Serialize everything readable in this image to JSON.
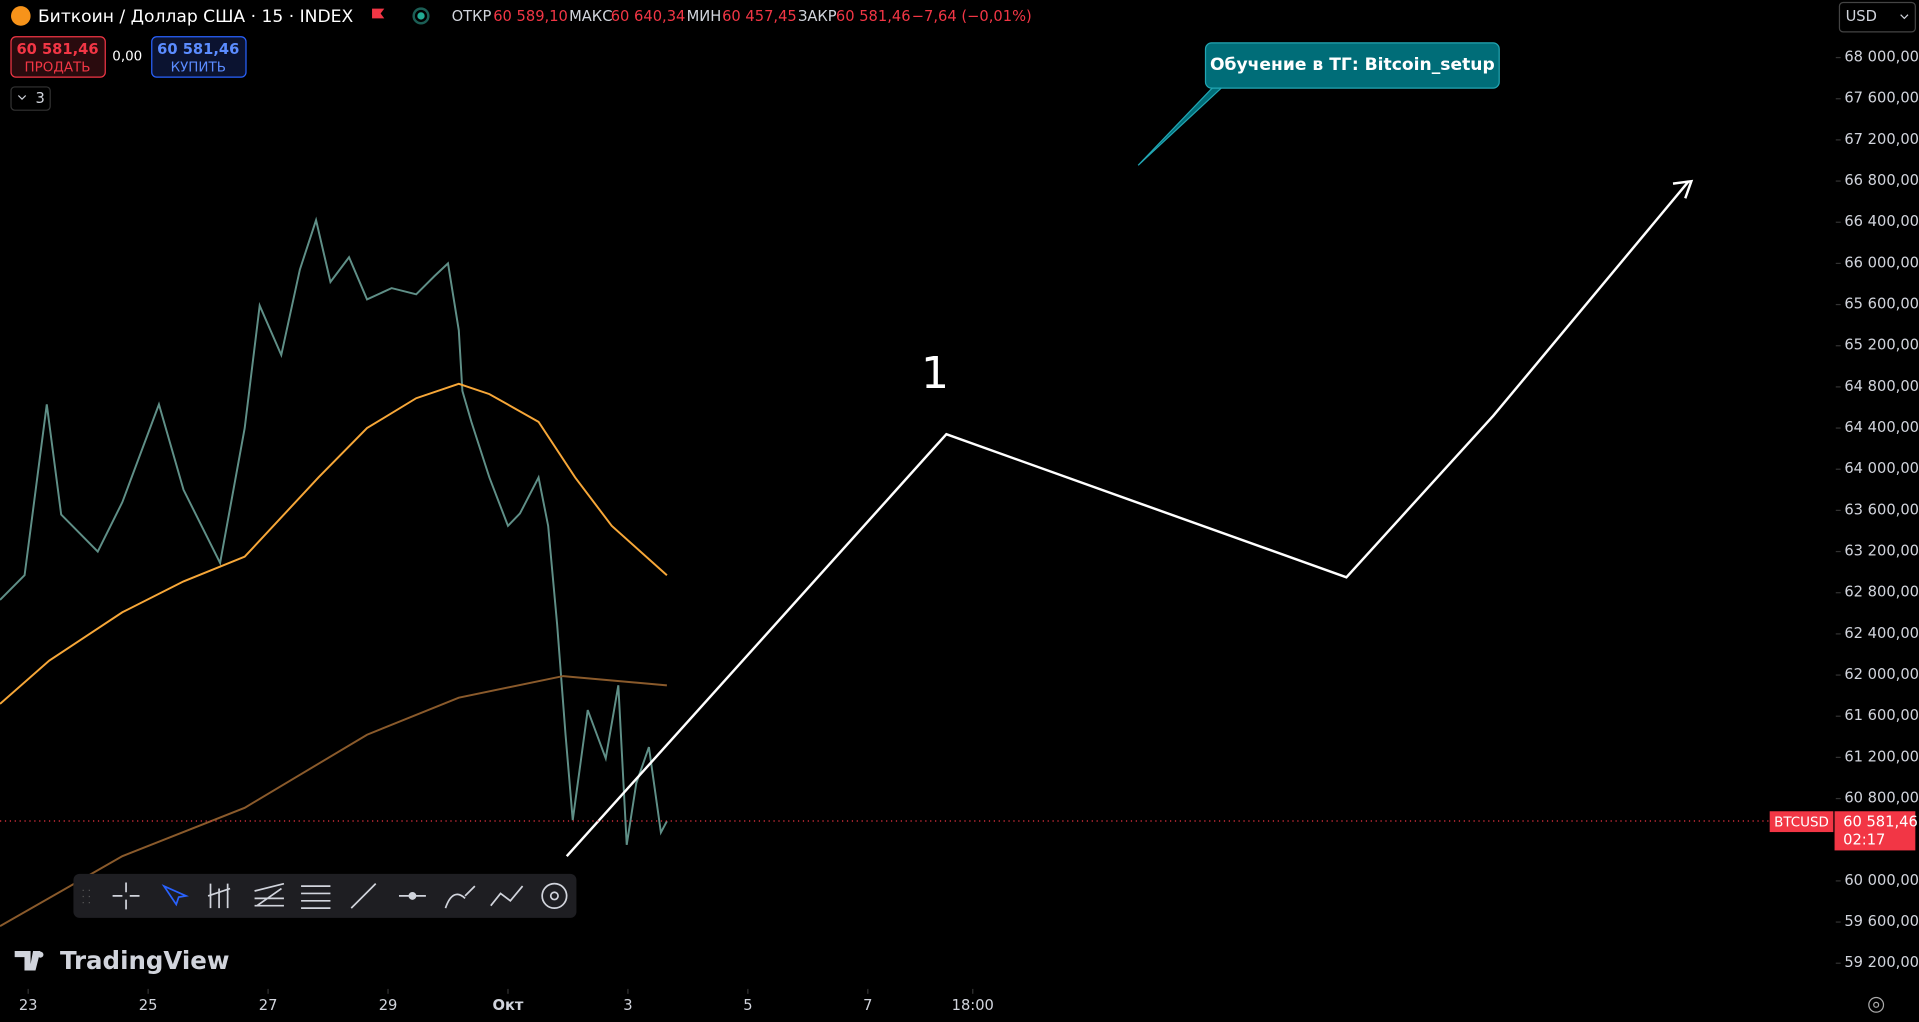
{
  "header": {
    "title": "Биткоин / Доллар США · 15 · INDEX",
    "open_label": "ОТКР",
    "open": "60 589,10",
    "high_label": "МАКС",
    "high": "60 640,34",
    "low_label": "МИН",
    "low": "60 457,45",
    "close_label": "ЗАКР",
    "close": "60 581,46",
    "change": "−7,64 (−0,01%)",
    "sell_price": "60 581,46",
    "sell_label": "ПРОДАТЬ",
    "spread": "0,00",
    "buy_price": "60 581,46",
    "buy_label": "КУПИТЬ",
    "indicators_count": "3",
    "currency": "USD",
    "logo": "TradingView"
  },
  "chart_data": {
    "type": "line",
    "annotations": {
      "callout": "Обучение в ТГ: Bitcoin_setup",
      "wave_label": "1"
    },
    "xlim": [
      -0.47,
      30.14
    ],
    "xticks": [
      {
        "value": 0,
        "label": "23"
      },
      {
        "value": 2,
        "label": "25"
      },
      {
        "value": 4,
        "label": "27"
      },
      {
        "value": 6,
        "label": "29"
      },
      {
        "value": 8,
        "label": "Окт"
      },
      {
        "value": 10,
        "label": "3"
      },
      {
        "value": 12,
        "label": "5"
      },
      {
        "value": 14,
        "label": "7"
      },
      {
        "value": 15.75,
        "label": "18:00"
      }
    ],
    "ylim": [
      58986,
      68559
    ],
    "yticks": [
      {
        "value": 68000,
        "label": "68 000,00"
      },
      {
        "value": 67600,
        "label": "67 600,00"
      },
      {
        "value": 67200,
        "label": "67 200,00"
      },
      {
        "value": 66800,
        "label": "66 800,00"
      },
      {
        "value": 66400,
        "label": "66 400,00"
      },
      {
        "value": 66000,
        "label": "66 000,00"
      },
      {
        "value": 65600,
        "label": "65 600,00"
      },
      {
        "value": 65200,
        "label": "65 200,00"
      },
      {
        "value": 64800,
        "label": "64 800,00"
      },
      {
        "value": 64400,
        "label": "64 400,00"
      },
      {
        "value": 64000,
        "label": "64 000,00"
      },
      {
        "value": 63600,
        "label": "63 600,00"
      },
      {
        "value": 63200,
        "label": "63 200,00"
      },
      {
        "value": 62800,
        "label": "62 800,00"
      },
      {
        "value": 62400,
        "label": "62 400,00"
      },
      {
        "value": 62000,
        "label": "62 000,00"
      },
      {
        "value": 61600,
        "label": "61 600,00"
      },
      {
        "value": 61200,
        "label": "61 200,00"
      },
      {
        "value": 60800,
        "label": "60 800,00"
      },
      {
        "value": 60000,
        "label": "60 000,00"
      },
      {
        "value": 59600,
        "label": "59 600,00"
      },
      {
        "value": 59200,
        "label": "59 200,00"
      }
    ],
    "last_price": {
      "value": 60581.46,
      "label": "60 581,46"
    },
    "symbol": "BTCUSD",
    "countdown": "02:17",
    "series": [
      {
        "color": "#5f8f87",
        "x": [
          -0.47,
          -0.06,
          0.31,
          0.55,
          1.16,
          1.57,
          2.18,
          2.59,
          3.2,
          3.61,
          3.86,
          4.22,
          4.53,
          4.8,
          5.04,
          5.35,
          5.65,
          6.06,
          6.47,
          6.78,
          7.0,
          7.18,
          7.24,
          7.39,
          7.69,
          8.0,
          8.2,
          8.51,
          8.67,
          8.82,
          8.96,
          9.08,
          9.33,
          9.63,
          9.84,
          9.98,
          10.14,
          10.35,
          10.55,
          10.65
        ],
        "values": [
          62730,
          62970,
          64630,
          63560,
          63200,
          63680,
          64630,
          63800,
          63090,
          64400,
          65590,
          65110,
          65940,
          66420,
          65820,
          66060,
          65650,
          65760,
          65700,
          65880,
          66000,
          65350,
          64760,
          64460,
          63920,
          63450,
          63570,
          63920,
          63450,
          62490,
          61420,
          60590,
          61660,
          61190,
          61900,
          60350,
          60950,
          61300,
          60470,
          60580
        ]
      },
      {
        "color": "#f7a738",
        "x": [
          -0.47,
          0.35,
          1.57,
          2.59,
          3.61,
          4.84,
          5.65,
          6.47,
          7.18,
          7.69,
          8.51,
          9.12,
          9.73,
          10.65
        ],
        "values": [
          61720,
          62140,
          62610,
          62910,
          63150,
          63920,
          64400,
          64690,
          64830,
          64730,
          64460,
          63920,
          63450,
          62970
        ]
      },
      {
        "color": "#8a5a2b",
        "x": [
          -0.47,
          1.57,
          3.61,
          5.65,
          7.18,
          8.92,
          10.65
        ],
        "values": [
          59560,
          60240,
          60710,
          61420,
          61780,
          61990,
          61900
        ]
      },
      {
        "color": "#ffffff",
        "x": [
          8.98,
          15.31,
          21.98,
          24.43,
          27.69
        ],
        "values": [
          60240,
          64340,
          62950,
          64520,
          66800
        ]
      }
    ]
  }
}
